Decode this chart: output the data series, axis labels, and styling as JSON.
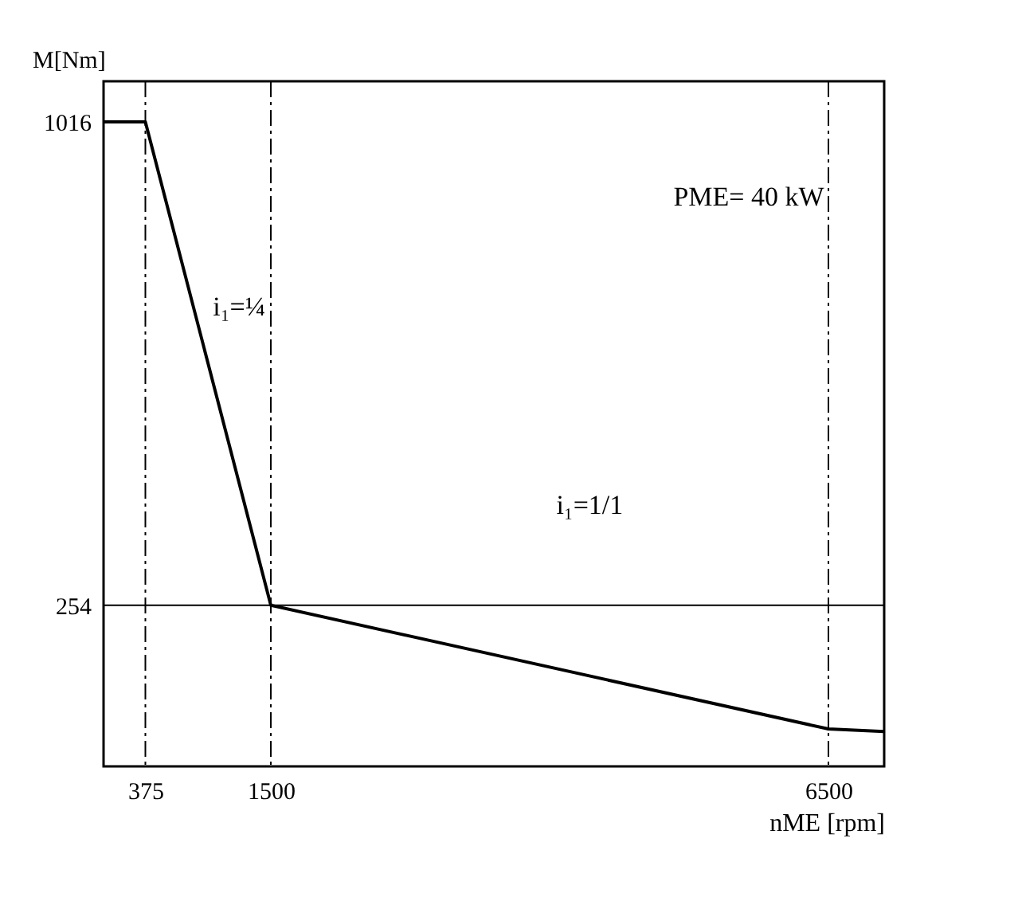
{
  "chart_data": {
    "type": "line",
    "xlabel": "nME [rpm]",
    "ylabel": "M[Nm]",
    "x": [
      0,
      375,
      1500,
      6500,
      7000
    ],
    "series": [
      {
        "color": "#000000",
        "values": [
          1016,
          1016,
          254,
          59,
          55
        ]
      }
    ],
    "xlim": [
      0,
      7000
    ],
    "xticks": [
      375,
      1500,
      6500
    ],
    "ylim": [
      0,
      1080
    ],
    "yticks": [
      254,
      1016
    ],
    "grid": false,
    "marker": "none",
    "line_style": "solid",
    "ref_lines": [
      {
        "axis": "x",
        "value": 375,
        "line_style": "dashdot",
        "color": "#000000"
      },
      {
        "axis": "x",
        "value": 1500,
        "line_style": "dashdot",
        "color": "#000000"
      },
      {
        "axis": "x",
        "value": 6500,
        "line_style": "dashdot",
        "color": "#000000"
      },
      {
        "axis": "y",
        "value": 254,
        "line_style": "solid",
        "color": "#000000"
      }
    ],
    "annotations": [
      "i₁=¼",
      "i₁=1/1",
      "PME= 40 kW"
    ]
  }
}
